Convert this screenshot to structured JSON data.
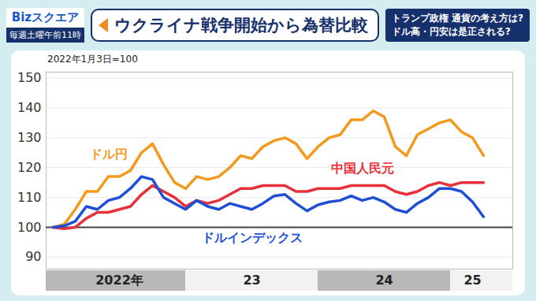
{
  "header": {
    "logo": "Bizスクエア",
    "schedule": "毎週土曜午前11時",
    "topics": [
      "トランプ政権 通貨の考え方は?",
      "ドル高・円安は是正される?"
    ]
  },
  "chart_data": {
    "type": "line",
    "title": "ウクライナ戦争開始から為替比較",
    "subtitle": "2022年1月3日=100",
    "categories": [
      null,
      null,
      null,
      null,
      null,
      null,
      "2022年",
      null,
      null,
      null,
      null,
      null,
      null,
      null,
      null,
      null,
      null,
      null,
      "23",
      null,
      null,
      null,
      null,
      null,
      null,
      null,
      null,
      null,
      null,
      null,
      "24",
      null,
      null,
      null,
      null,
      null,
      null,
      null,
      "25",
      null,
      null,
      null
    ],
    "series": [
      {
        "name": "ドル円",
        "color": "#f39a1e",
        "values": [
          100,
          101,
          106,
          112,
          112,
          117,
          117,
          119,
          125,
          128,
          121,
          115,
          113,
          117,
          116,
          117,
          120,
          124,
          123,
          127,
          129,
          130,
          128,
          123,
          127,
          130,
          131,
          136,
          136,
          139,
          137,
          127,
          124,
          131,
          133,
          135,
          136,
          132,
          130,
          124,
          null,
          null
        ]
      },
      {
        "name": "中国人民元",
        "color": "#e8303a",
        "values": [
          100,
          99.5,
          100,
          103,
          105,
          105,
          106,
          107,
          111,
          114,
          112,
          110,
          107,
          109,
          108,
          109,
          111,
          113,
          113,
          114,
          114,
          114,
          112,
          112,
          113,
          113,
          113,
          114,
          114,
          114,
          114,
          112,
          111,
          112,
          114,
          115,
          114,
          115,
          115,
          115,
          null,
          null
        ]
      },
      {
        "name": "ドルインデックス",
        "color": "#1f4fd6",
        "values": [
          100,
          100.5,
          102,
          107,
          106,
          109,
          110,
          113,
          117,
          116,
          110,
          108,
          106,
          109,
          107,
          106,
          108,
          107,
          106,
          108,
          110.5,
          111,
          108,
          105.5,
          107.5,
          108.5,
          109,
          110.5,
          109,
          110,
          108.5,
          106,
          105,
          108,
          110,
          113,
          113,
          112,
          108.5,
          103.5,
          null,
          null
        ]
      }
    ],
    "ylim": [
      86,
      152
    ],
    "yticks": [
      90,
      100,
      110,
      120,
      130,
      140,
      150
    ],
    "grid": true
  }
}
